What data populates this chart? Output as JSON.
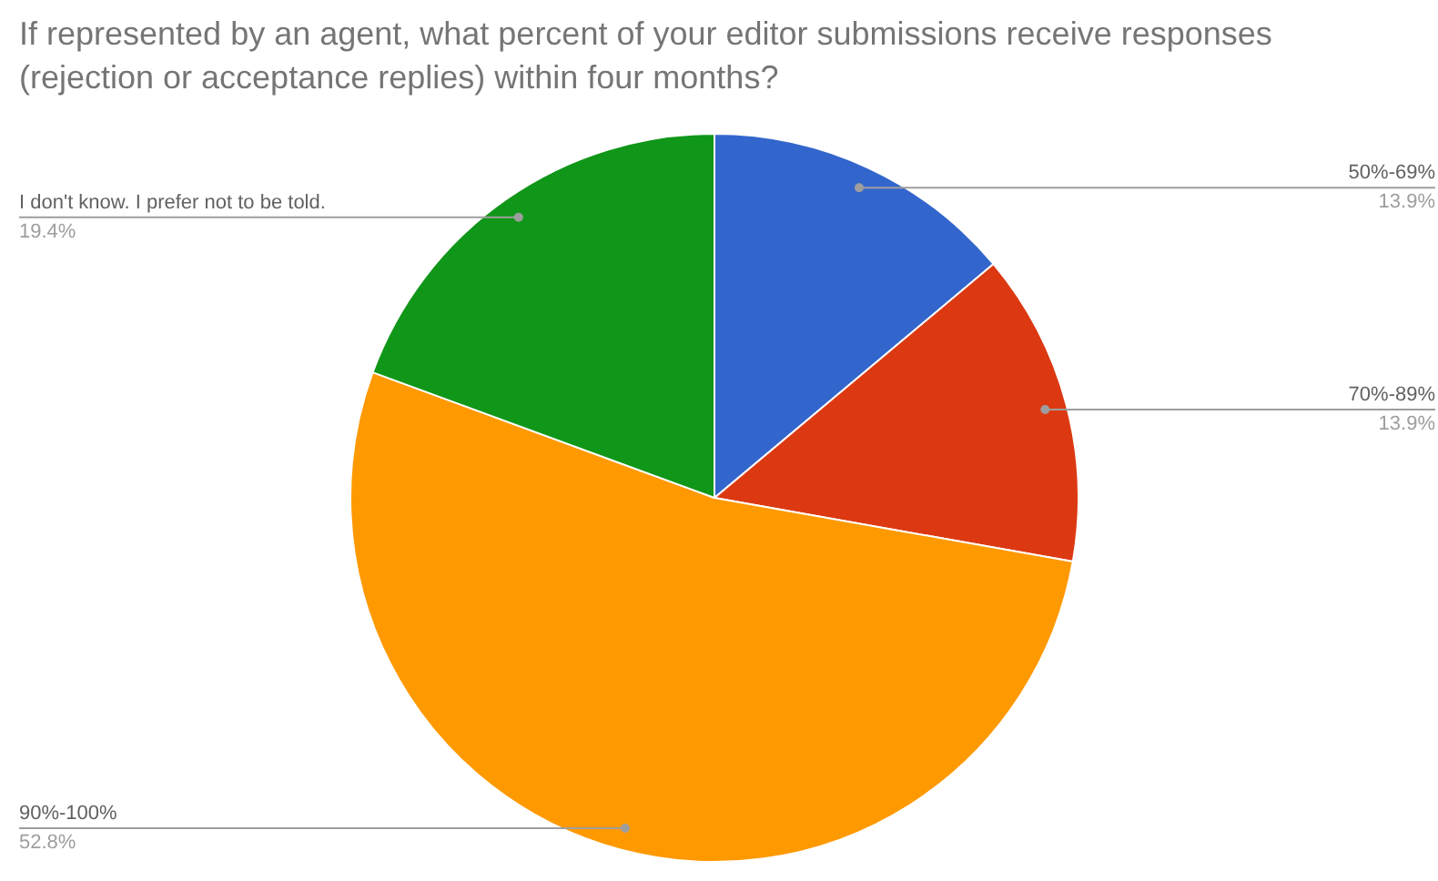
{
  "chart_data": {
    "type": "pie",
    "title": "If represented by an agent, what percent of your editor submissions receive responses (rejection or acceptance replies) within four months?",
    "categories": [
      "50%-69%",
      "70%-89%",
      "90%-100%",
      "I don't know. I prefer not to be told."
    ],
    "values": [
      13.9,
      13.9,
      52.8,
      19.4
    ],
    "colors": [
      "#3366cc",
      "#dc3912",
      "#ff9900",
      "#109618"
    ],
    "value_labels": [
      "13.9%",
      "13.9%",
      "52.8%",
      "19.4%"
    ]
  }
}
